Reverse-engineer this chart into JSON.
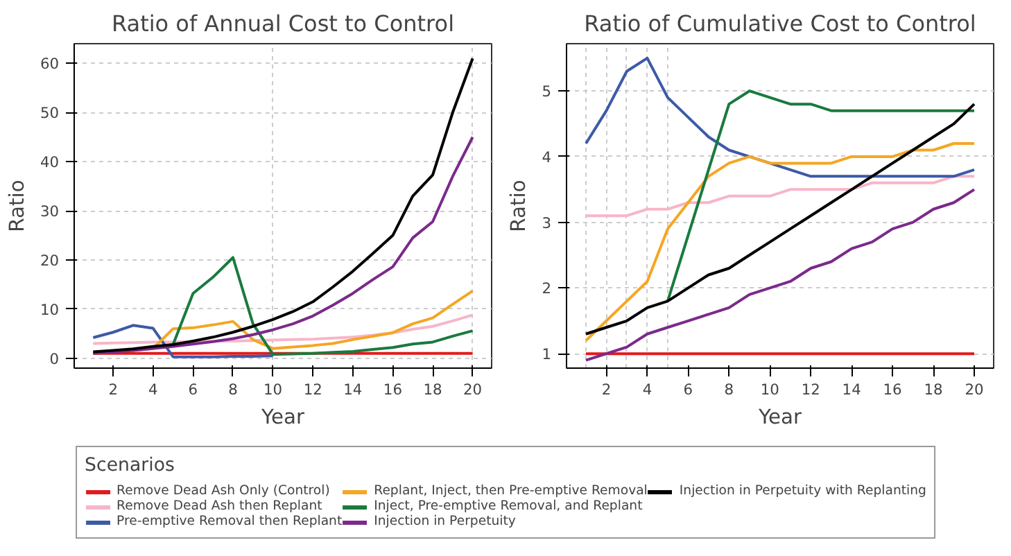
{
  "chart_data": [
    {
      "type": "line",
      "title": "Ratio of Annual Cost to Control",
      "xlabel": "Year",
      "ylabel": "Ratio",
      "legend_title": "Scenarios",
      "legend": "bottom",
      "grid": true,
      "line_style": "solid",
      "x": [
        1,
        2,
        3,
        4,
        5,
        6,
        7,
        8,
        9,
        10,
        11,
        12,
        13,
        14,
        15,
        16,
        17,
        18,
        19,
        20
      ],
      "xlim": [
        0.05,
        20.95
      ],
      "ylim": [
        -2,
        64
      ],
      "xticks": [
        2,
        4,
        6,
        8,
        10,
        12,
        14,
        16,
        18,
        20
      ],
      "yticks": [
        0,
        10,
        20,
        30,
        40,
        50,
        60
      ],
      "series": [
        {
          "name": "Remove Dead Ash Only (Control)",
          "color": "#e31a1c",
          "values": [
            1,
            1,
            1,
            1,
            1,
            1,
            1,
            1,
            1,
            1,
            1,
            1,
            1,
            1,
            1,
            1,
            1,
            1,
            1,
            1
          ]
        },
        {
          "name": "Remove Dead Ash then Replant",
          "color": "#f7b6c8",
          "values": [
            3.0,
            3.1,
            3.2,
            3.3,
            3.3,
            3.4,
            3.5,
            3.5,
            3.6,
            3.7,
            3.8,
            3.9,
            4.1,
            4.3,
            4.7,
            5.2,
            5.9,
            6.5,
            7.6,
            8.8
          ]
        },
        {
          "name": "Pre-emptive Removal then Replant",
          "color": "#3d5aa8",
          "values": [
            4.2,
            5.3,
            6.7,
            6.1,
            0.3,
            0.3,
            0.3,
            0.4,
            0.4,
            0.5,
            null,
            null,
            null,
            null,
            null,
            null,
            null,
            null,
            null,
            null
          ]
        },
        {
          "name": "Replant, Inject, then Pre-emptive Removal",
          "color": "#f5a623",
          "values": [
            null,
            null,
            1.6,
            2.0,
            6.0,
            6.2,
            6.8,
            7.5,
            3.8,
            2.0,
            2.3,
            2.6,
            3.0,
            3.8,
            4.5,
            5.2,
            7.0,
            8.2,
            11,
            13.7
          ]
        },
        {
          "name": "Inject, Pre-emptive Removal, and Replant",
          "color": "#1a7a3e",
          "values": [
            null,
            null,
            null,
            null,
            2.8,
            13.2,
            16.5,
            20.5,
            7,
            0.8,
            0.9,
            1.0,
            1.2,
            1.4,
            1.8,
            2.2,
            2.9,
            3.3,
            4.5,
            5.6
          ]
        },
        {
          "name": "Injection in Perpetuity",
          "color": "#7b2a8a",
          "values": [
            1.0,
            1.3,
            1.6,
            2.0,
            2.4,
            2.9,
            3.4,
            4.0,
            4.8,
            5.8,
            7.0,
            8.6,
            10.8,
            13.2,
            16,
            18.6,
            24.5,
            27.8,
            37,
            45
          ]
        },
        {
          "name": "Injection in Perpetuity with Replanting",
          "color": "#000000",
          "values": [
            1.3,
            1.6,
            1.9,
            2.4,
            2.8,
            3.5,
            4.3,
            5.3,
            6.5,
            7.9,
            9.5,
            11.5,
            14.5,
            17.7,
            21.3,
            25,
            33,
            37.3,
            50,
            61
          ]
        }
      ]
    },
    {
      "type": "line",
      "title": "Ratio of Cumulative Cost to Control",
      "xlabel": "Year",
      "ylabel": "Ratio",
      "grid": true,
      "line_style": "solid",
      "x": [
        1,
        2,
        3,
        4,
        5,
        6,
        7,
        8,
        9,
        10,
        11,
        12,
        13,
        14,
        15,
        16,
        17,
        18,
        19,
        20
      ],
      "xlim": [
        0.05,
        20.95
      ],
      "ylim": [
        0.78,
        5.72
      ],
      "xticks": [
        2,
        4,
        6,
        8,
        10,
        12,
        14,
        16,
        18,
        20
      ],
      "yticks": [
        1,
        2,
        3,
        4,
        5
      ],
      "series": [
        {
          "color": "#e31a1c",
          "values": [
            1,
            1,
            1,
            1,
            1,
            1,
            1,
            1,
            1,
            1,
            1,
            1,
            1,
            1,
            1,
            1,
            1,
            1,
            1,
            1
          ]
        },
        {
          "color": "#f7b6c8",
          "values": [
            3.1,
            3.1,
            3.1,
            3.2,
            3.2,
            3.3,
            3.3,
            3.4,
            3.4,
            3.4,
            3.5,
            3.5,
            3.5,
            3.5,
            3.6,
            3.6,
            3.6,
            3.6,
            3.7,
            3.7
          ]
        },
        {
          "color": "#3d5aa8",
          "values": [
            4.2,
            4.7,
            5.3,
            5.5,
            4.9,
            4.6,
            4.3,
            4.1,
            4.0,
            3.9,
            3.8,
            3.7,
            3.7,
            3.7,
            3.7,
            3.7,
            3.7,
            3.7,
            3.7,
            3.8
          ]
        },
        {
          "color": "#f5a623",
          "values": [
            1.2,
            1.5,
            1.8,
            2.1,
            2.9,
            3.3,
            3.7,
            3.9,
            4.0,
            3.9,
            3.9,
            3.9,
            3.9,
            4.0,
            4.0,
            4.0,
            4.1,
            4.1,
            4.2,
            4.2
          ]
        },
        {
          "color": "#1a7a3e",
          "values": [
            null,
            null,
            null,
            null,
            1.8,
            2.8,
            3.8,
            4.8,
            5.0,
            4.9,
            4.8,
            4.8,
            4.7,
            4.7,
            4.7,
            4.7,
            4.7,
            4.7,
            4.7,
            4.7
          ]
        },
        {
          "color": "#7b2a8a",
          "values": [
            0.9,
            1.0,
            1.1,
            1.3,
            1.4,
            1.5,
            1.6,
            1.7,
            1.9,
            2.0,
            2.1,
            2.3,
            2.4,
            2.6,
            2.7,
            2.9,
            3.0,
            3.2,
            3.3,
            3.5
          ]
        },
        {
          "color": "#000000",
          "values": [
            1.3,
            1.4,
            1.5,
            1.7,
            1.8,
            2.0,
            2.2,
            2.3,
            2.5,
            2.7,
            2.9,
            3.1,
            3.3,
            3.5,
            3.7,
            3.9,
            4.1,
            4.3,
            4.5,
            4.8
          ]
        }
      ]
    }
  ]
}
